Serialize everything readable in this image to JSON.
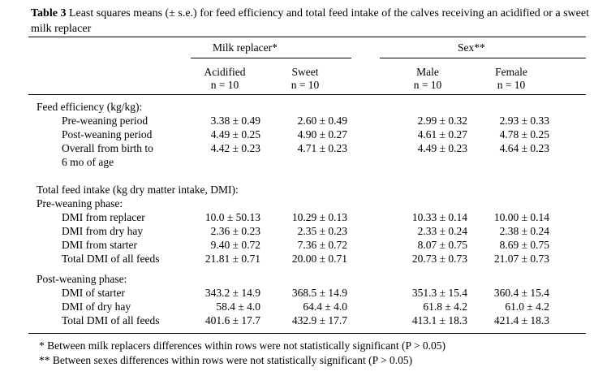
{
  "caption": {
    "label": "Table 3",
    "text": " Least squares means (± s.e.) for feed efficiency and total feed intake of the calves receiving an acidified or a sweet milk replacer"
  },
  "header": {
    "groups": [
      "Milk replacer*",
      "Sex**"
    ],
    "columns": [
      {
        "name": "Acidified",
        "n": "n = 10"
      },
      {
        "name": "Sweet",
        "n": "n = 10"
      },
      {
        "name": "Male",
        "n": "n = 10"
      },
      {
        "name": "Female",
        "n": "n = 10"
      }
    ]
  },
  "rows": [
    {
      "type": "section",
      "label": "Feed efficiency (kg/kg):"
    },
    {
      "type": "item",
      "label": "Pre-weaning period",
      "values": [
        "3.38 ± 0.49",
        "2.60 ± 0.49",
        "2.99 ± 0.32",
        "2.93 ± 0.33"
      ]
    },
    {
      "type": "item",
      "label": "Post-weaning period",
      "values": [
        "4.49 ± 0.25",
        "4.90 ± 0.27",
        "4.61 ± 0.27",
        "4.78 ± 0.25"
      ]
    },
    {
      "type": "item",
      "label": "Overall from birth to",
      "values": [
        "4.42 ± 0.23",
        "4.71 ± 0.23",
        "4.49 ± 0.23",
        "4.64 ± 0.23"
      ]
    },
    {
      "type": "item",
      "label": "6 mo of age",
      "values": []
    },
    {
      "type": "section",
      "label": "Total feed intake (kg dry matter intake, DMI):"
    },
    {
      "type": "section",
      "label": "Pre-weaning phase:"
    },
    {
      "type": "item",
      "label": "DMI from replacer",
      "values": [
        "10.0 ± 50.13",
        "10.29 ± 0.13",
        "10.33 ± 0.14",
        "10.00 ± 0.14"
      ]
    },
    {
      "type": "item",
      "label": "DMI from dry hay",
      "values": [
        "2.36 ± 0.23",
        "2.35 ± 0.23",
        "2.33 ± 0.24",
        "2.38 ± 0.24"
      ]
    },
    {
      "type": "item",
      "label": "DMI from starter",
      "values": [
        "9.40 ± 0.72",
        "7.36 ± 0.72",
        "8.07 ± 0.75",
        "8.69 ± 0.75"
      ]
    },
    {
      "type": "item",
      "label": "Total DMI of all feeds",
      "values": [
        "21.81 ± 0.71",
        "20.00 ± 0.71",
        "20.73 ± 0.73",
        "21.07 ± 0.73"
      ]
    },
    {
      "type": "section",
      "label": "Post-weaning phase:"
    },
    {
      "type": "item",
      "label": "DMI of starter",
      "values": [
        "343.2 ± 14.9",
        "368.5 ± 14.9",
        "351.3 ± 15.4",
        "360.4 ± 15.4"
      ]
    },
    {
      "type": "item",
      "label": "DMI of dry hay",
      "values": [
        "58.4 ± 4.0",
        "64.4 ± 4.0",
        "61.8 ± 4.2",
        "61.0 ± 4.2"
      ]
    },
    {
      "type": "item",
      "label": "Total DMI of all feeds",
      "values": [
        "401.6 ± 17.7",
        "432.9 ± 17.7",
        "413.1 ± 18.3",
        "421.4 ± 18.3"
      ]
    }
  ],
  "footnotes": [
    "* Between milk replacers differences within rows were not statistically significant (P > 0.05)",
    "** Between sexes differences within rows were not statistically significant (P > 0.05)"
  ]
}
